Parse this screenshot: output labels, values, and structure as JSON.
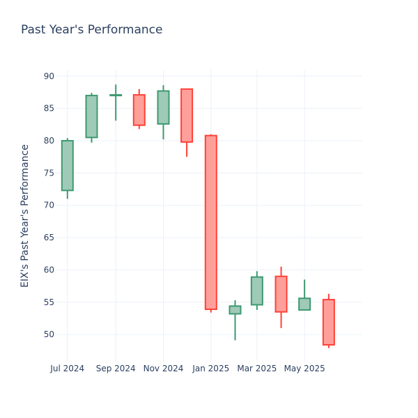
{
  "chart_data": {
    "type": "candlestick",
    "title": "Past Year's Performance",
    "xlabel": "",
    "ylabel": "EIX's Past Year's Performance",
    "ylim": [
      45.7,
      91
    ],
    "yticks": [
      50,
      55,
      60,
      65,
      70,
      75,
      80,
      85,
      90
    ],
    "xlim": [
      "2024-06-16",
      "2025-07-14"
    ],
    "xticks": [
      {
        "date": "2024-07-01",
        "label": "Jul 2024"
      },
      {
        "date": "2024-09-01",
        "label": "Sep 2024"
      },
      {
        "date": "2024-11-01",
        "label": "Nov 2024"
      },
      {
        "date": "2025-01-01",
        "label": "Jan 2025"
      },
      {
        "date": "2025-03-01",
        "label": "Mar 2025"
      },
      {
        "date": "2025-05-01",
        "label": "May 2025"
      }
    ],
    "grid": true,
    "legend": "none",
    "colors": {
      "increasing_line": "#3d9970",
      "increasing_fill": "#9ecab7",
      "decreasing_line": "#ff4136",
      "decreasing_fill": "#ff9f9a",
      "grid": "#ebf0f8",
      "text": "#2a3f5f"
    },
    "candles": [
      {
        "date": "2024-07-01",
        "open": 72.3,
        "high": 80.4,
        "low": 71.0,
        "close": 80.0
      },
      {
        "date": "2024-08-01",
        "open": 80.5,
        "high": 87.4,
        "low": 79.7,
        "close": 87.0
      },
      {
        "date": "2024-09-01",
        "open": 87.0,
        "high": 88.7,
        "low": 83.1,
        "close": 87.1
      },
      {
        "date": "2024-10-01",
        "open": 87.1,
        "high": 88.0,
        "low": 81.8,
        "close": 82.4
      },
      {
        "date": "2024-11-01",
        "open": 82.6,
        "high": 88.6,
        "low": 80.2,
        "close": 87.7
      },
      {
        "date": "2024-12-01",
        "open": 88.0,
        "high": 88.0,
        "low": 77.5,
        "close": 79.8
      },
      {
        "date": "2025-01-01",
        "open": 80.8,
        "high": 81.0,
        "low": 53.4,
        "close": 53.9
      },
      {
        "date": "2025-02-01",
        "open": 53.2,
        "high": 55.3,
        "low": 49.1,
        "close": 54.4
      },
      {
        "date": "2025-03-01",
        "open": 54.6,
        "high": 59.8,
        "low": 53.8,
        "close": 58.9
      },
      {
        "date": "2025-04-01",
        "open": 59.0,
        "high": 60.5,
        "low": 51.0,
        "close": 53.5
      },
      {
        "date": "2025-05-01",
        "open": 53.8,
        "high": 58.5,
        "low": 53.8,
        "close": 55.6
      },
      {
        "date": "2025-06-01",
        "open": 55.4,
        "high": 56.3,
        "low": 47.9,
        "close": 48.4
      }
    ]
  }
}
